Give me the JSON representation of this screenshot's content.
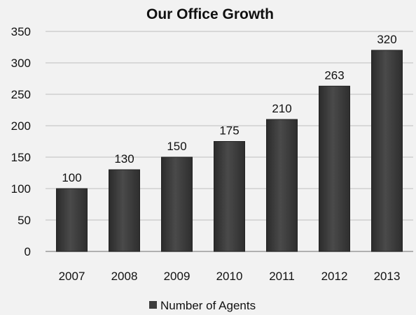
{
  "chart_data": {
    "type": "bar",
    "title": "Our Office Growth",
    "categories": [
      "2007",
      "2008",
      "2009",
      "2010",
      "2011",
      "2012",
      "2013"
    ],
    "series": [
      {
        "name": "Number of Agents",
        "values": [
          100,
          130,
          150,
          175,
          210,
          263,
          320
        ]
      }
    ],
    "data_labels": [
      "100",
      "130",
      "150",
      "175",
      "210",
      "263",
      "320"
    ],
    "y_ticks": [
      "0",
      "50",
      "100",
      "150",
      "200",
      "250",
      "300",
      "350"
    ],
    "ylim": [
      0,
      350
    ],
    "xlabel": "",
    "ylabel": "",
    "grid": true,
    "legend_position": "bottom",
    "colors": {
      "bar": "#3d3d3d",
      "bar_edge": "#232323",
      "grid": "#bdbdbd",
      "axis": "#9a9a9a"
    }
  }
}
